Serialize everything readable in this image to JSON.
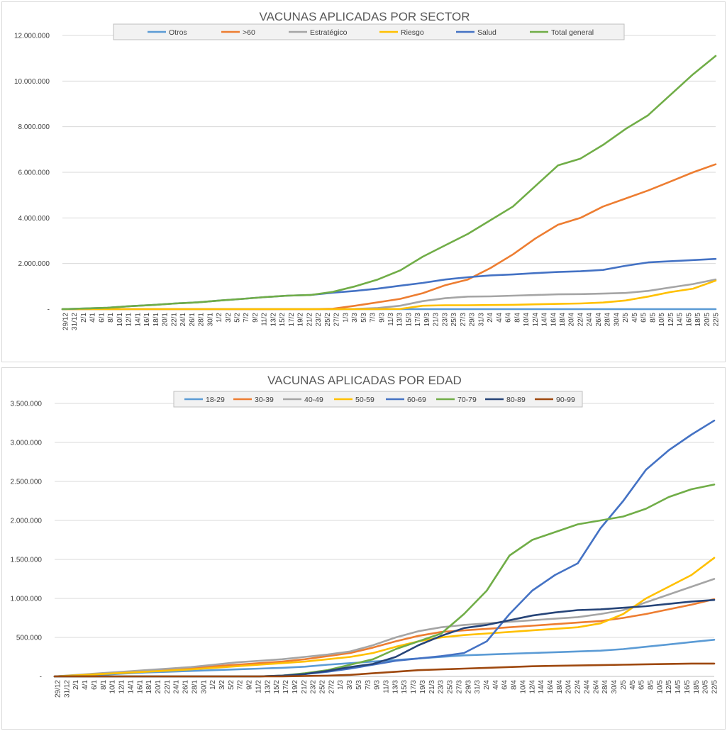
{
  "chart_data": [
    {
      "type": "line",
      "title": "VACUNAS APLICADAS POR SECTOR",
      "xlabel": "",
      "ylabel": "",
      "ylim": [
        0,
        12000000
      ],
      "yticks": [
        "-",
        "2.000.000",
        "4.000.000",
        "6.000.000",
        "8.000.000",
        "10.000.000",
        "12.000.000"
      ],
      "xticks": [
        "29/12",
        "31/12",
        "2/1",
        "4/1",
        "6/1",
        "8/1",
        "10/1",
        "12/1",
        "14/1",
        "16/1",
        "18/1",
        "20/1",
        "22/1",
        "24/1",
        "26/1",
        "28/1",
        "30/1",
        "1/2",
        "3/2",
        "5/2",
        "7/2",
        "9/2",
        "11/2",
        "13/2",
        "15/2",
        "17/2",
        "19/2",
        "21/2",
        "23/2",
        "25/2",
        "27/2",
        "1/3",
        "3/3",
        "5/3",
        "7/3",
        "9/3",
        "11/3",
        "13/3",
        "15/3",
        "17/3",
        "19/3",
        "21/3",
        "23/3",
        "25/3",
        "27/3",
        "29/3",
        "31/3",
        "2/4",
        "4/4",
        "6/4",
        "8/4",
        "10/4",
        "12/4",
        "14/4",
        "16/4",
        "18/4",
        "20/4",
        "22/4",
        "24/4",
        "26/4",
        "28/4",
        "30/4",
        "2/5",
        "4/5",
        "6/5",
        "8/5",
        "10/5",
        "12/5",
        "14/5",
        "16/5",
        "18/5",
        "20/5",
        "22/5"
      ],
      "grid": true,
      "legend_position": "top",
      "x_days": [
        0,
        5,
        10,
        15,
        20,
        25,
        30,
        35,
        40,
        45,
        50,
        55,
        60,
        65,
        70,
        75,
        80,
        85,
        90,
        95,
        100,
        105,
        110,
        115,
        120,
        125,
        130,
        135,
        140,
        145
      ],
      "series": [
        {
          "name": "Otros",
          "color": "#5b9bd5",
          "values": [
            0,
            0,
            0,
            0,
            0,
            0,
            0,
            0,
            0,
            0,
            0,
            0,
            0,
            0,
            0,
            0,
            0,
            0,
            0,
            0,
            0,
            0,
            0,
            0,
            0,
            0,
            0,
            0,
            0,
            0
          ]
        },
        {
          "name": ">60",
          "color": "#ed7d31",
          "values": [
            0,
            0,
            0,
            0,
            0,
            0,
            0,
            0,
            0,
            0,
            0,
            0,
            20000,
            150000,
            300000,
            450000,
            700000,
            1050000,
            1300000,
            1800000,
            2400000,
            3100000,
            3700000,
            4000000,
            4500000,
            4850000,
            5200000,
            5600000,
            6000000,
            6350000
          ]
        },
        {
          "name": "Estratégico",
          "color": "#a5a5a5",
          "values": [
            0,
            0,
            0,
            0,
            0,
            0,
            0,
            0,
            0,
            0,
            0,
            0,
            0,
            10000,
            50000,
            150000,
            350000,
            480000,
            550000,
            560000,
            590000,
            620000,
            650000,
            660000,
            680000,
            710000,
            800000,
            950000,
            1100000,
            1300000
          ]
        },
        {
          "name": "Riesgo",
          "color": "#ffc000",
          "values": [
            0,
            0,
            0,
            0,
            0,
            0,
            0,
            0,
            0,
            0,
            0,
            0,
            0,
            0,
            0,
            10000,
            150000,
            170000,
            170000,
            180000,
            190000,
            210000,
            230000,
            250000,
            290000,
            380000,
            550000,
            750000,
            900000,
            1250000
          ]
        },
        {
          "name": "Salud",
          "color": "#4472c4",
          "values": [
            0,
            30000,
            60000,
            130000,
            180000,
            250000,
            300000,
            380000,
            450000,
            530000,
            590000,
            620000,
            720000,
            800000,
            900000,
            1030000,
            1150000,
            1300000,
            1400000,
            1480000,
            1520000,
            1580000,
            1630000,
            1660000,
            1720000,
            1900000,
            2050000,
            2100000,
            2150000,
            2200000
          ]
        },
        {
          "name": "Total general",
          "color": "#70ad47",
          "values": [
            0,
            30000,
            60000,
            130000,
            180000,
            250000,
            300000,
            380000,
            450000,
            530000,
            590000,
            620000,
            760000,
            1000000,
            1300000,
            1700000,
            2300000,
            2800000,
            3300000,
            3900000,
            4500000,
            5400000,
            6300000,
            6600000,
            7200000,
            7900000,
            8500000,
            9400000,
            10300000,
            11100000
          ]
        }
      ]
    },
    {
      "type": "line",
      "title": "VACUNAS APLICADAS POR EDAD",
      "xlabel": "",
      "ylabel": "",
      "ylim": [
        0,
        3500000
      ],
      "yticks": [
        "-",
        "500.000",
        "1.000.000",
        "1.500.000",
        "2.000.000",
        "2.500.000",
        "3.000.000",
        "3.500.000"
      ],
      "xticks": [
        "29/12",
        "31/12",
        "2/1",
        "4/1",
        "6/1",
        "8/1",
        "10/1",
        "12/1",
        "14/1",
        "16/1",
        "18/1",
        "20/1",
        "22/1",
        "24/1",
        "26/1",
        "28/1",
        "30/1",
        "1/2",
        "3/2",
        "5/2",
        "7/2",
        "9/2",
        "11/2",
        "13/2",
        "15/2",
        "17/2",
        "19/2",
        "21/2",
        "23/2",
        "25/2",
        "27/2",
        "1/3",
        "3/3",
        "5/3",
        "7/3",
        "9/3",
        "11/3",
        "13/3",
        "15/3",
        "17/3",
        "19/3",
        "21/3",
        "23/3",
        "25/3",
        "27/3",
        "29/3",
        "31/3",
        "2/4",
        "4/4",
        "6/4",
        "8/4",
        "10/4",
        "12/4",
        "14/4",
        "16/4",
        "18/4",
        "20/4",
        "22/4",
        "24/4",
        "26/4",
        "28/4",
        "30/4",
        "2/5",
        "4/5",
        "6/5",
        "8/5",
        "10/5",
        "12/5",
        "14/5",
        "16/5",
        "18/5",
        "20/5",
        "22/5"
      ],
      "grid": true,
      "legend_position": "top",
      "x_days": [
        0,
        5,
        10,
        15,
        20,
        25,
        30,
        35,
        40,
        45,
        50,
        55,
        60,
        65,
        70,
        75,
        80,
        85,
        90,
        95,
        100,
        105,
        110,
        115,
        120,
        125,
        130,
        135,
        140,
        145
      ],
      "series": [
        {
          "name": "18-29",
          "color": "#5b9bd5",
          "values": [
            0,
            10000,
            20000,
            35000,
            50000,
            60000,
            70000,
            80000,
            90000,
            100000,
            110000,
            125000,
            150000,
            170000,
            190000,
            210000,
            230000,
            250000,
            270000,
            280000,
            290000,
            300000,
            310000,
            320000,
            330000,
            350000,
            380000,
            410000,
            440000,
            470000
          ]
        },
        {
          "name": "30-39",
          "color": "#ed7d31",
          "values": [
            0,
            15000,
            30000,
            50000,
            70000,
            90000,
            110000,
            130000,
            150000,
            170000,
            190000,
            220000,
            260000,
            300000,
            370000,
            450000,
            520000,
            570000,
            590000,
            610000,
            630000,
            650000,
            670000,
            690000,
            710000,
            750000,
            800000,
            860000,
            920000,
            990000
          ]
        },
        {
          "name": "40-49",
          "color": "#a5a5a5",
          "values": [
            0,
            20000,
            40000,
            60000,
            80000,
            100000,
            120000,
            150000,
            180000,
            200000,
            220000,
            250000,
            280000,
            320000,
            400000,
            500000,
            580000,
            630000,
            660000,
            680000,
            700000,
            720000,
            740000,
            760000,
            800000,
            850000,
            950000,
            1050000,
            1150000,
            1250000
          ]
        },
        {
          "name": "50-59",
          "color": "#ffc000",
          "values": [
            0,
            15000,
            30000,
            45000,
            60000,
            75000,
            90000,
            110000,
            130000,
            150000,
            170000,
            190000,
            220000,
            250000,
            300000,
            380000,
            450000,
            500000,
            530000,
            550000,
            570000,
            590000,
            610000,
            630000,
            680000,
            800000,
            1000000,
            1150000,
            1300000,
            1520000
          ]
        },
        {
          "name": "60-69",
          "color": "#4472c4",
          "values": [
            0,
            0,
            0,
            0,
            0,
            0,
            0,
            0,
            0,
            0,
            10000,
            30000,
            60000,
            100000,
            150000,
            200000,
            230000,
            260000,
            300000,
            450000,
            800000,
            1100000,
            1300000,
            1450000,
            1900000,
            2250000,
            2650000,
            2900000,
            3100000,
            3280000
          ]
        },
        {
          "name": "70-79",
          "color": "#70ad47",
          "values": [
            0,
            0,
            0,
            0,
            0,
            0,
            0,
            0,
            0,
            0,
            10000,
            40000,
            80000,
            150000,
            220000,
            350000,
            450000,
            550000,
            800000,
            1100000,
            1550000,
            1750000,
            1850000,
            1950000,
            2000000,
            2050000,
            2150000,
            2300000,
            2400000,
            2460000
          ]
        },
        {
          "name": "80-89",
          "color": "#264478",
          "values": [
            0,
            0,
            0,
            0,
            0,
            0,
            0,
            0,
            0,
            0,
            10000,
            30000,
            70000,
            120000,
            160000,
            250000,
            400000,
            520000,
            620000,
            660000,
            720000,
            780000,
            820000,
            850000,
            860000,
            880000,
            900000,
            930000,
            960000,
            980000
          ]
        },
        {
          "name": "90-99",
          "color": "#9e480e",
          "values": [
            0,
            0,
            0,
            0,
            0,
            0,
            0,
            0,
            0,
            0,
            0,
            5000,
            10000,
            20000,
            40000,
            60000,
            80000,
            90000,
            100000,
            110000,
            120000,
            130000,
            135000,
            140000,
            145000,
            150000,
            155000,
            160000,
            165000,
            165000
          ]
        }
      ]
    }
  ]
}
